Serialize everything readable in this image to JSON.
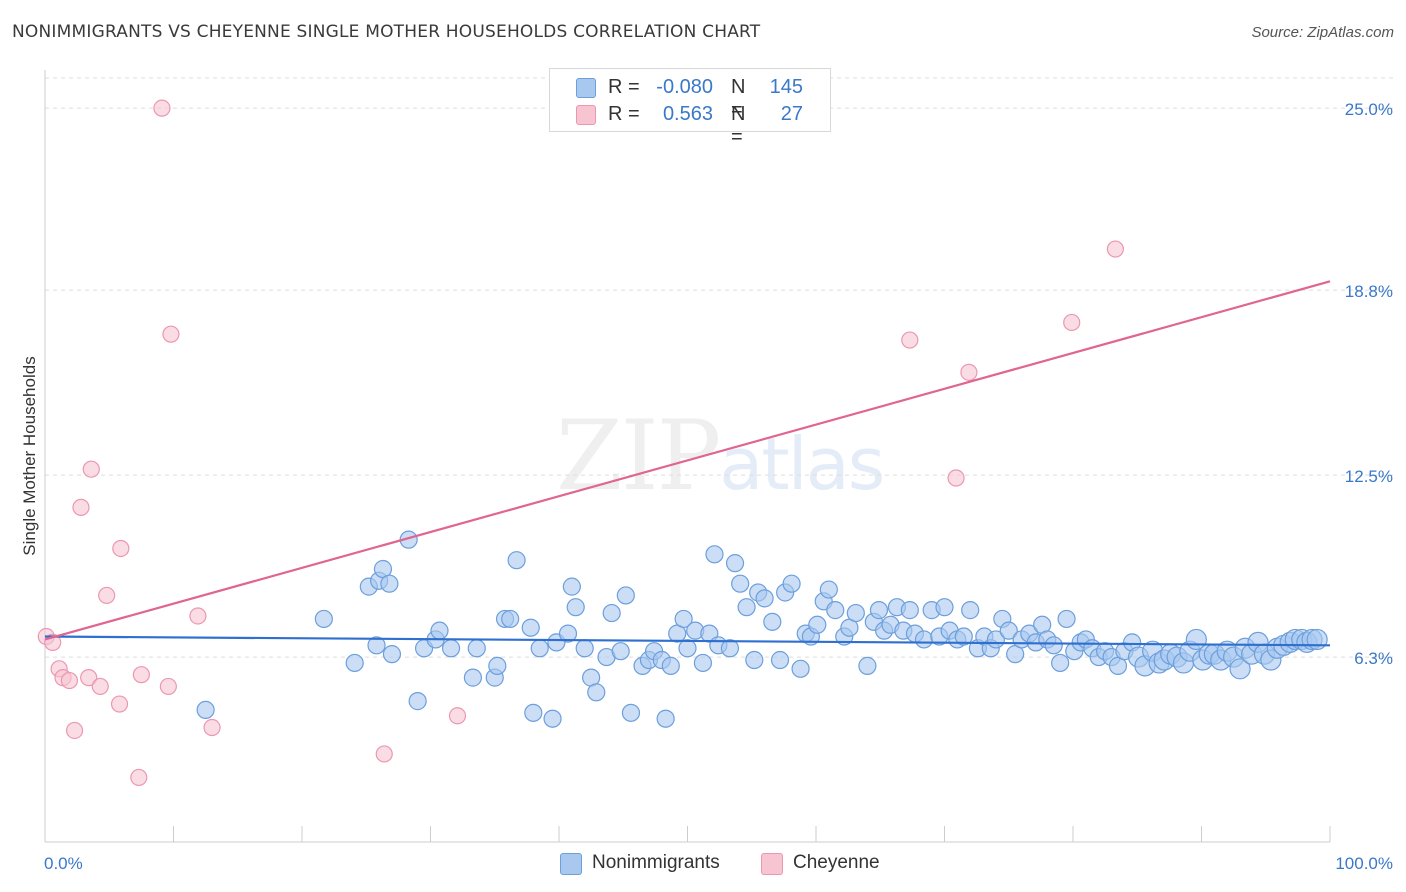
{
  "title": "NONIMMIGRANTS VS CHEYENNE SINGLE MOTHER HOUSEHOLDS CORRELATION CHART",
  "source": "Source: ZipAtlas.com",
  "watermark": {
    "zip": "ZIP",
    "atlas": "atlas"
  },
  "legend": {
    "r_label": "R =",
    "n_label": "N =",
    "series": [
      {
        "name": "Nonimmigrants",
        "r": "-0.080",
        "n": "145"
      },
      {
        "name": "Cheyenne",
        "r": "0.563",
        "n": "27"
      }
    ]
  },
  "chart_data": {
    "type": "scatter",
    "ylabel": "Single Mother Households",
    "xlim": [
      0,
      100
    ],
    "ylim": [
      0,
      26.3
    ],
    "x_tick_labels": [
      "0.0%",
      "100.0%"
    ],
    "y_ticks": [
      6.3,
      12.5,
      18.8,
      25.0
    ],
    "y_tick_labels": [
      "6.3%",
      "12.5%",
      "18.8%",
      "25.0%"
    ],
    "grid": true,
    "colors": {
      "Nonimmigrants": {
        "fill": "#a9c8f0",
        "stroke": "#6c9fdc",
        "line": "#2f6fd0"
      },
      "Cheyenne": {
        "fill": "#f7c4d2",
        "stroke": "#ec97b0",
        "line": "#e06590"
      }
    },
    "series": [
      {
        "name": "Nonimmigrants",
        "trend": [
          [
            0,
            7.0
          ],
          [
            100,
            6.7
          ]
        ],
        "points": [
          [
            12.5,
            4.5
          ],
          [
            21.7,
            7.6
          ],
          [
            24.1,
            6.1
          ],
          [
            25.2,
            8.7
          ],
          [
            25.8,
            6.7
          ],
          [
            26.0,
            8.9
          ],
          [
            26.3,
            9.3
          ],
          [
            26.8,
            8.8
          ],
          [
            27.0,
            6.4
          ],
          [
            28.3,
            10.3
          ],
          [
            29.0,
            4.8
          ],
          [
            29.5,
            6.6
          ],
          [
            30.4,
            6.9
          ],
          [
            30.7,
            7.2
          ],
          [
            31.6,
            6.6
          ],
          [
            33.3,
            5.6
          ],
          [
            33.6,
            6.6
          ],
          [
            35.0,
            5.6
          ],
          [
            35.2,
            6.0
          ],
          [
            35.8,
            7.6
          ],
          [
            36.2,
            7.6
          ],
          [
            36.7,
            9.6
          ],
          [
            37.8,
            7.3
          ],
          [
            38.0,
            4.4
          ],
          [
            38.5,
            6.6
          ],
          [
            39.5,
            4.2
          ],
          [
            39.8,
            6.8
          ],
          [
            40.7,
            7.1
          ],
          [
            41.0,
            8.7
          ],
          [
            41.3,
            8.0
          ],
          [
            42.0,
            6.6
          ],
          [
            42.5,
            5.6
          ],
          [
            42.9,
            5.1
          ],
          [
            43.7,
            6.3
          ],
          [
            44.1,
            7.8
          ],
          [
            44.8,
            6.5
          ],
          [
            45.2,
            8.4
          ],
          [
            45.6,
            4.4
          ],
          [
            46.5,
            6.0
          ],
          [
            47.0,
            6.2
          ],
          [
            47.4,
            6.5
          ],
          [
            48.0,
            6.2
          ],
          [
            48.3,
            4.2
          ],
          [
            48.7,
            6.0
          ],
          [
            49.2,
            7.1
          ],
          [
            49.7,
            7.6
          ],
          [
            50.0,
            6.6
          ],
          [
            50.6,
            7.2
          ],
          [
            51.2,
            6.1
          ],
          [
            51.7,
            7.1
          ],
          [
            52.1,
            9.8
          ],
          [
            52.4,
            6.7
          ],
          [
            53.3,
            6.6
          ],
          [
            53.7,
            9.5
          ],
          [
            54.1,
            8.8
          ],
          [
            54.6,
            8.0
          ],
          [
            55.2,
            6.2
          ],
          [
            55.5,
            8.5
          ],
          [
            56.0,
            8.3
          ],
          [
            56.6,
            7.5
          ],
          [
            57.2,
            6.2
          ],
          [
            57.6,
            8.5
          ],
          [
            58.1,
            8.8
          ],
          [
            58.8,
            5.9
          ],
          [
            59.2,
            7.1
          ],
          [
            59.6,
            7.0
          ],
          [
            60.1,
            7.4
          ],
          [
            60.6,
            8.2
          ],
          [
            61.0,
            8.6
          ],
          [
            61.5,
            7.9
          ],
          [
            62.2,
            7.0
          ],
          [
            62.6,
            7.3
          ],
          [
            63.1,
            7.8
          ],
          [
            64.0,
            6.0
          ],
          [
            64.5,
            7.5
          ],
          [
            64.9,
            7.9
          ],
          [
            65.3,
            7.2
          ],
          [
            65.8,
            7.4
          ],
          [
            66.3,
            8.0
          ],
          [
            66.8,
            7.2
          ],
          [
            67.3,
            7.9
          ],
          [
            67.7,
            7.1
          ],
          [
            68.4,
            6.9
          ],
          [
            69.0,
            7.9
          ],
          [
            69.6,
            7.0
          ],
          [
            70.0,
            8.0
          ],
          [
            70.4,
            7.2
          ],
          [
            71.0,
            6.9
          ],
          [
            71.5,
            7.0
          ],
          [
            72.0,
            7.9
          ],
          [
            72.6,
            6.6
          ],
          [
            73.1,
            7.0
          ],
          [
            73.6,
            6.6
          ],
          [
            74.0,
            6.9
          ],
          [
            74.5,
            7.6
          ],
          [
            75.0,
            7.2
          ],
          [
            75.5,
            6.4
          ],
          [
            76.0,
            6.9
          ],
          [
            76.6,
            7.1
          ],
          [
            77.1,
            6.8
          ],
          [
            77.6,
            7.4
          ],
          [
            78.0,
            6.9
          ],
          [
            78.5,
            6.7
          ],
          [
            79.0,
            6.1
          ],
          [
            79.5,
            7.6
          ],
          [
            80.1,
            6.5
          ],
          [
            80.6,
            6.8
          ],
          [
            81.0,
            6.9
          ],
          [
            81.5,
            6.6
          ],
          [
            82.0,
            6.3
          ],
          [
            82.5,
            6.5
          ],
          [
            83.0,
            6.3
          ],
          [
            83.5,
            6.0
          ],
          [
            84.0,
            6.5
          ],
          [
            84.6,
            6.8
          ],
          [
            85.1,
            6.3
          ],
          [
            85.6,
            6.0
          ],
          [
            86.2,
            6.5
          ],
          [
            86.7,
            6.1
          ],
          [
            87.1,
            6.2
          ],
          [
            87.6,
            6.4
          ],
          [
            88.1,
            6.3
          ],
          [
            88.6,
            6.1
          ],
          [
            89.1,
            6.5
          ],
          [
            89.6,
            6.9
          ],
          [
            90.1,
            6.2
          ],
          [
            90.6,
            6.4
          ],
          [
            91.0,
            6.4
          ],
          [
            91.5,
            6.2
          ],
          [
            92.0,
            6.5
          ],
          [
            92.5,
            6.3
          ],
          [
            93.0,
            5.9
          ],
          [
            93.4,
            6.6
          ],
          [
            93.9,
            6.4
          ],
          [
            94.4,
            6.8
          ],
          [
            94.9,
            6.4
          ],
          [
            95.4,
            6.2
          ],
          [
            95.9,
            6.6
          ],
          [
            96.4,
            6.7
          ],
          [
            96.9,
            6.8
          ],
          [
            97.3,
            6.9
          ],
          [
            97.8,
            6.9
          ],
          [
            98.2,
            6.8
          ],
          [
            98.6,
            6.9
          ],
          [
            99.0,
            6.9
          ]
        ]
      },
      {
        "name": "Cheyenne",
        "trend": [
          [
            0,
            6.9
          ],
          [
            100,
            19.1
          ]
        ],
        "points": [
          [
            0.1,
            7.0
          ],
          [
            0.6,
            6.8
          ],
          [
            1.1,
            5.9
          ],
          [
            1.4,
            5.6
          ],
          [
            1.9,
            5.5
          ],
          [
            2.3,
            3.8
          ],
          [
            2.8,
            11.4
          ],
          [
            3.4,
            5.6
          ],
          [
            3.6,
            12.7
          ],
          [
            4.3,
            5.3
          ],
          [
            4.8,
            8.4
          ],
          [
            5.8,
            4.7
          ],
          [
            5.9,
            10.0
          ],
          [
            7.3,
            2.2
          ],
          [
            7.5,
            5.7
          ],
          [
            9.1,
            25.0
          ],
          [
            9.6,
            5.3
          ],
          [
            9.8,
            17.3
          ],
          [
            11.9,
            7.7
          ],
          [
            13.0,
            3.9
          ],
          [
            26.4,
            3.0
          ],
          [
            32.1,
            4.3
          ],
          [
            67.3,
            17.1
          ],
          [
            70.9,
            12.4
          ],
          [
            71.9,
            16.0
          ],
          [
            79.9,
            17.7
          ],
          [
            83.3,
            20.2
          ]
        ]
      }
    ]
  }
}
